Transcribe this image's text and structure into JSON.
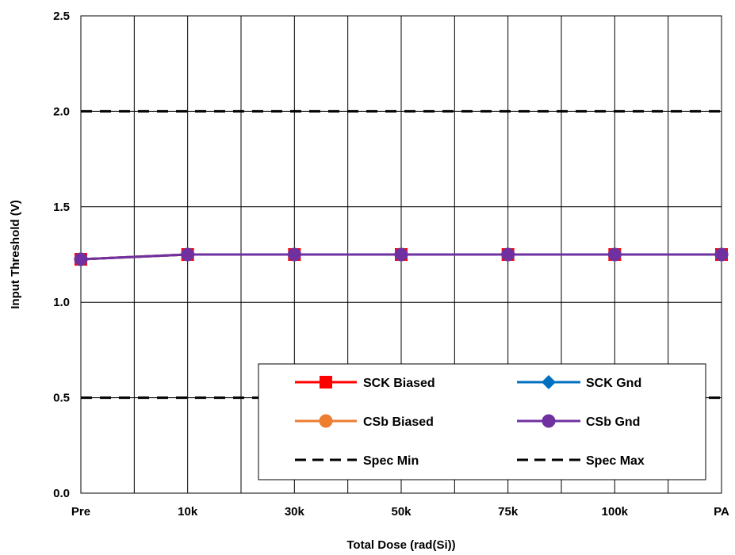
{
  "chart_data": {
    "type": "line",
    "title": "",
    "xlabel": "Total Dose (rad(Si))",
    "ylabel": "Input Threshold (V)",
    "categories": [
      "Pre",
      "10k",
      "30k",
      "50k",
      "75k",
      "100k",
      "PA"
    ],
    "ylim": [
      0,
      2.5
    ],
    "yticks": [
      "0.0",
      "0.5",
      "1.0",
      "1.5",
      "2.0",
      "2.5"
    ],
    "grid": true,
    "legend_position": "bottom-right",
    "series": [
      {
        "name": "SCK Biased",
        "values": [
          1.225,
          1.25,
          1.25,
          1.25,
          1.25,
          1.25,
          1.25
        ],
        "color": "#ff0000",
        "marker": "square",
        "dash": false
      },
      {
        "name": "SCK Gnd",
        "values": [
          1.225,
          1.25,
          1.25,
          1.25,
          1.25,
          1.25,
          1.25
        ],
        "color": "#0070c0",
        "marker": "diamond",
        "dash": false
      },
      {
        "name": "CSb Biased",
        "values": [
          1.225,
          1.25,
          1.25,
          1.25,
          1.25,
          1.25,
          1.25
        ],
        "color": "#ed7d31",
        "marker": "circle",
        "dash": false
      },
      {
        "name": "CSb Gnd",
        "values": [
          1.225,
          1.25,
          1.25,
          1.25,
          1.25,
          1.25,
          1.25
        ],
        "color": "#7030a0",
        "marker": "circle",
        "dash": false
      },
      {
        "name": "Spec Min",
        "values": [
          0.5,
          0.5,
          0.5,
          0.5,
          0.5,
          0.5,
          0.5
        ],
        "color": "#000000",
        "marker": "none",
        "dash": true
      },
      {
        "name": "Spec Max",
        "values": [
          2.0,
          2.0,
          2.0,
          2.0,
          2.0,
          2.0,
          2.0
        ],
        "color": "#000000",
        "marker": "none",
        "dash": true
      }
    ]
  }
}
